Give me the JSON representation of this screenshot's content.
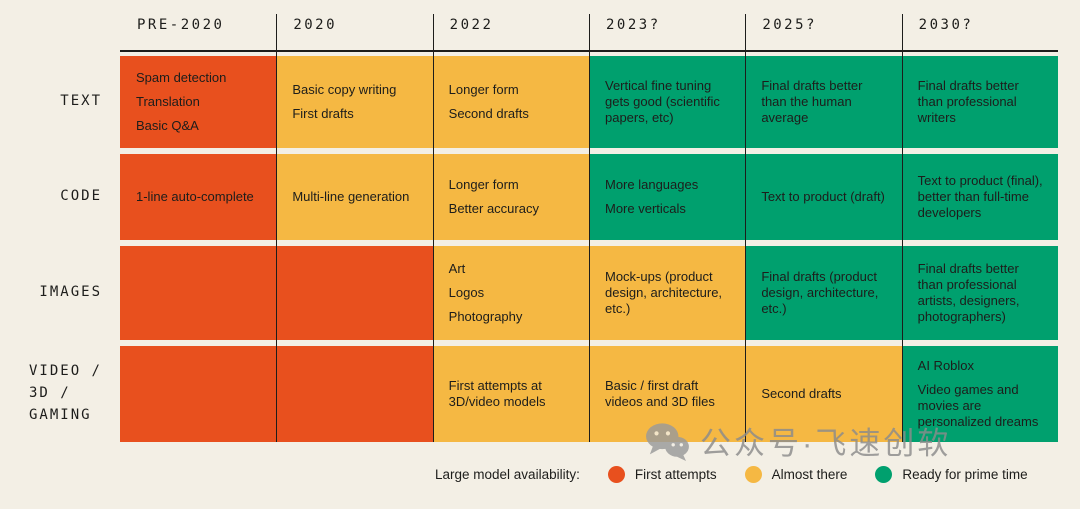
{
  "chart_data": {
    "type": "table",
    "columns": [
      "PRE-2020",
      "2020",
      "2022",
      "2023?",
      "2025?",
      "2030?"
    ],
    "rows": [
      {
        "label": "TEXT",
        "cells": [
          {
            "status": "first_attempts",
            "items": [
              "Spam detection",
              "Translation",
              "Basic Q&A"
            ]
          },
          {
            "status": "almost_there",
            "items": [
              "Basic copy writing",
              "First drafts"
            ]
          },
          {
            "status": "almost_there",
            "items": [
              "Longer form",
              "Second drafts"
            ]
          },
          {
            "status": "ready_for_prime_time",
            "items": [
              "Vertical fine tuning gets good (scientific papers, etc)"
            ]
          },
          {
            "status": "ready_for_prime_time",
            "items": [
              "Final drafts better than the human average"
            ]
          },
          {
            "status": "ready_for_prime_time",
            "items": [
              "Final drafts better than professional writers"
            ]
          }
        ]
      },
      {
        "label": "CODE",
        "cells": [
          {
            "status": "first_attempts",
            "items": [
              "1-line auto-complete"
            ]
          },
          {
            "status": "almost_there",
            "items": [
              "Multi-line generation"
            ]
          },
          {
            "status": "almost_there",
            "items": [
              "Longer form",
              "Better accuracy"
            ]
          },
          {
            "status": "ready_for_prime_time",
            "items": [
              "More languages",
              "More verticals"
            ]
          },
          {
            "status": "ready_for_prime_time",
            "items": [
              "Text to product (draft)"
            ]
          },
          {
            "status": "ready_for_prime_time",
            "items": [
              "Text to product (final), better than full-time developers"
            ]
          }
        ]
      },
      {
        "label": "IMAGES",
        "cells": [
          {
            "status": "first_attempts",
            "items": []
          },
          {
            "status": "first_attempts",
            "items": []
          },
          {
            "status": "almost_there",
            "items": [
              "Art",
              "Logos",
              "Photography"
            ]
          },
          {
            "status": "almost_there",
            "items": [
              "Mock-ups (product design, architecture, etc.)"
            ]
          },
          {
            "status": "ready_for_prime_time",
            "items": [
              "Final drafts (product design, architecture, etc.)"
            ]
          },
          {
            "status": "ready_for_prime_time",
            "items": [
              "Final drafts better than professional artists, designers, photographers)"
            ]
          }
        ]
      },
      {
        "label": "VIDEO /\n3D /\nGAMING",
        "cells": [
          {
            "status": "first_attempts",
            "items": []
          },
          {
            "status": "first_attempts",
            "items": []
          },
          {
            "status": "almost_there",
            "items": [
              "First attempts at 3D/video models"
            ]
          },
          {
            "status": "almost_there",
            "items": [
              "Basic / first draft videos and 3D files"
            ]
          },
          {
            "status": "almost_there",
            "items": [
              "Second drafts"
            ]
          },
          {
            "status": "ready_for_prime_time",
            "items": [
              "AI Roblox",
              "Video games and movies are personalized dreams"
            ]
          }
        ]
      }
    ],
    "status_colors": {
      "first_attempts": "#E8501E",
      "almost_there": "#F5B843",
      "ready_for_prime_time": "#00A06E"
    },
    "legend": {
      "label": "Large model availability:",
      "entries": [
        {
          "label": "First attempts",
          "color": "#E8501E"
        },
        {
          "label": "Almost there",
          "color": "#F5B843"
        },
        {
          "label": "Ready for prime time",
          "color": "#00A06E"
        }
      ]
    },
    "layout": {
      "background": "#F3EFE5",
      "line_color": "#1D1D1B",
      "text_color": "#1D1D1B",
      "grid": "vertical-separators",
      "legend_position": "bottom"
    }
  },
  "watermark": {
    "text": "公众号·飞速创软",
    "icon": "wechat-icon",
    "color": "#8C8C8C"
  }
}
